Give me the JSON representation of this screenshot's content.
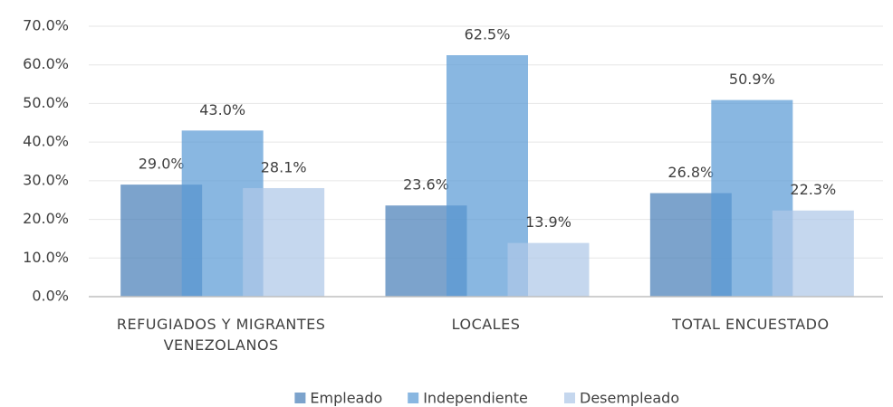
{
  "chart_data": {
    "type": "bar",
    "categories": [
      "REFUGIADOS Y MIGRANTES VENEZOLANOS",
      "LOCALES",
      "TOTAL ENCUESTADO"
    ],
    "series": [
      {
        "name": "Empleado",
        "color": "#4a80b8",
        "values": [
          29.0,
          23.6,
          26.8
        ],
        "value_labels": [
          "29.0%",
          "23.6%",
          "26.8%"
        ]
      },
      {
        "name": "Independiente",
        "color": "#5b9bd5",
        "values": [
          43.0,
          62.5,
          50.9
        ],
        "value_labels": [
          "43.0%",
          "62.5%",
          "50.9%"
        ]
      },
      {
        "name": "Desempleado",
        "color": "#aec7e8",
        "values": [
          28.1,
          13.9,
          22.3
        ],
        "value_labels": [
          "28.1%",
          "13.9%",
          "22.3%"
        ]
      }
    ],
    "ylim": [
      0,
      70
    ],
    "yticks": [
      {
        "value": 0,
        "label": "0.0%"
      },
      {
        "value": 10,
        "label": "10.0%"
      },
      {
        "value": 20,
        "label": "20.0%"
      },
      {
        "value": 30,
        "label": "30.0%"
      },
      {
        "value": 40,
        "label": "40.0%"
      },
      {
        "value": 50,
        "label": "50.0%"
      },
      {
        "value": 60,
        "label": "60.0%"
      },
      {
        "value": 70,
        "label": "70.0%"
      }
    ],
    "grid": true,
    "legend": "bottom"
  }
}
